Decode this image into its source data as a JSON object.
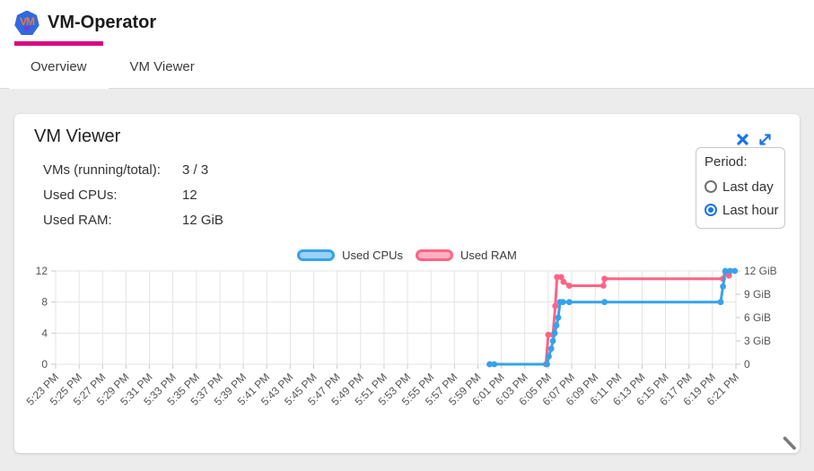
{
  "header": {
    "logo_text": "VM",
    "title": "VM-Operator"
  },
  "tabs": [
    {
      "label": "Overview",
      "active": true
    },
    {
      "label": "VM Viewer",
      "active": false
    }
  ],
  "card": {
    "title": "VM Viewer"
  },
  "icons": {
    "close": "✕",
    "expand": "⤢",
    "resize": "╲",
    "radio_checked": "◉",
    "radio_unchecked": "○"
  },
  "colors": {
    "accent_blue": "#1a73e8",
    "tab_indicator": "#d6067e",
    "cpu_line": "#36a2eb",
    "cpu_fill": "#9ad1f5",
    "ram_line": "#ff6384",
    "ram_fill": "#ffb1c1",
    "page_background": "#ececec"
  },
  "stats": {
    "rows": [
      {
        "label": "VMs (running/total):",
        "value": "3 / 3"
      },
      {
        "label": "Used CPUs:",
        "value": "12"
      },
      {
        "label": "Used RAM:",
        "value": "12 GiB"
      }
    ]
  },
  "period": {
    "label": "Period:",
    "options": [
      {
        "label": "Last day",
        "selected": false
      },
      {
        "label": "Last hour",
        "selected": true
      }
    ]
  },
  "chart_data": {
    "type": "line",
    "title": "",
    "legend_position": "top",
    "grid": true,
    "x_unit": "minutes since 5:23 PM",
    "x_range": [
      0,
      58
    ],
    "ylim": [
      0,
      12
    ],
    "x_labels": [
      "5:23 PM",
      "5:25 PM",
      "5:27 PM",
      "5:29 PM",
      "5:31 PM",
      "5:33 PM",
      "5:35 PM",
      "5:37 PM",
      "5:39 PM",
      "5:41 PM",
      "5:43 PM",
      "5:45 PM",
      "5:47 PM",
      "5:49 PM",
      "5:51 PM",
      "5:53 PM",
      "5:55 PM",
      "5:57 PM",
      "5:59 PM",
      "6:01 PM",
      "6:03 PM",
      "6:05 PM",
      "6:07 PM",
      "6:09 PM",
      "6:11 PM",
      "6:13 PM",
      "6:15 PM",
      "6:17 PM",
      "6:19 PM",
      "6:21 PM"
    ],
    "left_axis": [
      {
        "label": "0",
        "v": 0
      },
      {
        "label": "4",
        "v": 4
      },
      {
        "label": "8",
        "v": 8
      },
      {
        "label": "12",
        "v": 12
      }
    ],
    "right_axis": [
      {
        "label": "0",
        "v": 0
      },
      {
        "label": "3 GiB",
        "v": 3
      },
      {
        "label": "6 GiB",
        "v": 6
      },
      {
        "label": "9 GiB",
        "v": 9
      },
      {
        "label": "12 GiB",
        "v": 12
      }
    ],
    "series": [
      {
        "name": "Used CPUs",
        "color": "#36a2eb",
        "fill": "#9ad1f5",
        "points": [
          [
            37,
            0
          ],
          [
            37.4,
            0
          ],
          [
            41.9,
            0
          ],
          [
            42.05,
            1
          ],
          [
            42.25,
            2
          ],
          [
            42.4,
            3
          ],
          [
            42.55,
            4
          ],
          [
            42.7,
            5
          ],
          [
            42.85,
            6
          ],
          [
            43.0,
            8
          ],
          [
            43.25,
            8
          ],
          [
            43.8,
            8
          ],
          [
            46.8,
            8
          ],
          [
            56.7,
            8
          ],
          [
            56.9,
            10
          ],
          [
            57.1,
            12
          ],
          [
            57.5,
            12
          ],
          [
            57.9,
            12
          ]
        ]
      },
      {
        "name": "Used RAM",
        "color": "#ff6384",
        "fill": "#ffb1c1",
        "points": [
          [
            37,
            0
          ],
          [
            41.8,
            0
          ],
          [
            42.0,
            3.8
          ],
          [
            42.4,
            3.8
          ],
          [
            42.6,
            7.5
          ],
          [
            42.75,
            11.2
          ],
          [
            43.1,
            11.2
          ],
          [
            43.3,
            10.6
          ],
          [
            43.8,
            10.1
          ],
          [
            46.7,
            10.1
          ],
          [
            46.8,
            11.0
          ],
          [
            56.9,
            11.0
          ],
          [
            57.1,
            11.9
          ],
          [
            57.4,
            11.4
          ]
        ]
      }
    ]
  }
}
